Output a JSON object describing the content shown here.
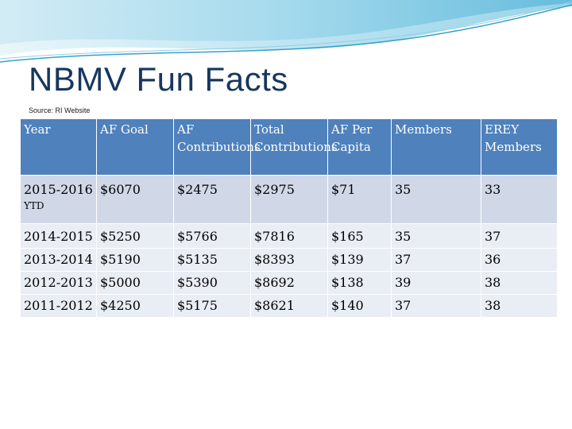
{
  "slide": {
    "title": "NBMV Fun Facts",
    "source": "Source: RI Website"
  },
  "table": {
    "headers": [
      "Year",
      "AF Goal",
      "AF Contributions",
      "Total Contributions",
      "AF Per Capita",
      "Members",
      "EREY Members"
    ],
    "rows": [
      {
        "year": "2015-2016",
        "year_suffix": "YTD",
        "af_goal": "$6070",
        "af_contrib": "$2475",
        "total_contrib": "$2975",
        "per_capita": "$71",
        "members": "35",
        "erey": "33"
      },
      {
        "year": "2014-2015",
        "year_suffix": "",
        "af_goal": "$5250",
        "af_contrib": "$5766",
        "total_contrib": "$7816",
        "per_capita": "$165",
        "members": "35",
        "erey": "37"
      },
      {
        "year": "2013-2014",
        "year_suffix": "",
        "af_goal": "$5190",
        "af_contrib": "$5135",
        "total_contrib": "$8393",
        "per_capita": "$139",
        "members": "37",
        "erey": "36"
      },
      {
        "year": "2012-2013",
        "year_suffix": "",
        "af_goal": "$5000",
        "af_contrib": "$5390",
        "total_contrib": "$8692",
        "per_capita": "$138",
        "members": "39",
        "erey": "38"
      },
      {
        "year": "2011-2012",
        "year_suffix": "",
        "af_goal": "$4250",
        "af_contrib": "$5175",
        "total_contrib": "$8621",
        "per_capita": "$140",
        "members": "37",
        "erey": "38"
      }
    ]
  },
  "colors": {
    "header_bg": "#4f81bd",
    "row_dark": "#d0d8e8",
    "row_light": "#e9edf4",
    "title": "#17375e",
    "wave": "#7ec8e3"
  }
}
